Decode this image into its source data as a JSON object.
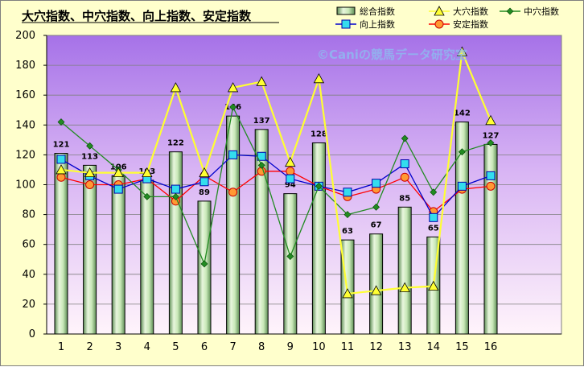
{
  "chart_data": {
    "type": "bar",
    "title": "大穴指数、中穴指数、向上指数、安定指数",
    "watermark": "©Caniの競馬データ研究室",
    "categories": [
      "1",
      "2",
      "3",
      "4",
      "5",
      "6",
      "7",
      "8",
      "9",
      "10",
      "11",
      "12",
      "13",
      "14",
      "15",
      "16"
    ],
    "ylim": [
      0,
      200
    ],
    "yticks": [
      "0",
      "20",
      "40",
      "60",
      "80",
      "100",
      "120",
      "140",
      "160",
      "180",
      "200"
    ],
    "grid": true,
    "legend_position": "top-right",
    "series": [
      {
        "name": "総合指数",
        "kind": "bar",
        "color": "#9acd8a",
        "values": [
          121,
          113,
          106,
          103,
          122,
          89,
          146,
          137,
          94,
          128,
          63,
          67,
          85,
          65,
          142,
          127
        ]
      },
      {
        "name": "大穴指数",
        "kind": "line",
        "color": "#ffff33",
        "marker": "triangle",
        "values": [
          110,
          108,
          108,
          108,
          165,
          108,
          165,
          169,
          115,
          171,
          27,
          29,
          31,
          32,
          189,
          143
        ]
      },
      {
        "name": "中穴指数",
        "kind": "line",
        "color": "#228b22",
        "marker": "diamond",
        "values": [
          142,
          126,
          110,
          92,
          92,
          47,
          152,
          113,
          52,
          99,
          80,
          85,
          131,
          95,
          122,
          128
        ]
      },
      {
        "name": "向上指数",
        "kind": "line",
        "color": "#0000cc",
        "marker": "square",
        "values": [
          117,
          106,
          97,
          104,
          97,
          102,
          120,
          119,
          104,
          99,
          95,
          101,
          114,
          78,
          99,
          106
        ]
      },
      {
        "name": "安定指数",
        "kind": "line",
        "color": "#ff0000",
        "marker": "circle",
        "values": [
          105,
          100,
          100,
          104,
          89,
          106,
          95,
          109,
          109,
          99,
          92,
          97,
          105,
          82,
          97,
          99
        ]
      }
    ],
    "bar_labels": [
      "121",
      "113",
      "106",
      "103",
      "122",
      "89",
      "146",
      "137",
      "94",
      "128",
      "63",
      "67",
      "85",
      "65",
      "142",
      "127"
    ]
  }
}
